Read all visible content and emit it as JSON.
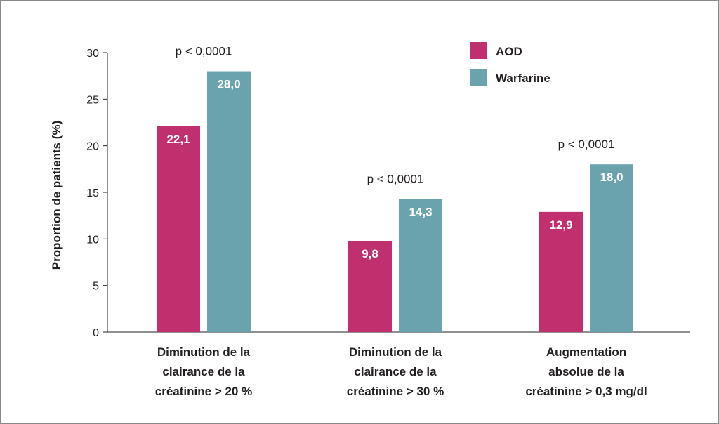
{
  "chart_data": {
    "type": "bar",
    "title": "",
    "ylabel": "Proportion de patients (%)",
    "xlabel": "",
    "ylim": [
      0,
      30
    ],
    "yticks": [
      0,
      5,
      10,
      15,
      20,
      25,
      30
    ],
    "legend_position": "top-right",
    "grid": false,
    "categories": [
      [
        "Diminution de la",
        "clairance de la",
        "créatinine > 20 %"
      ],
      [
        "Diminution de la",
        "clairance de la",
        "créatinine > 30 %"
      ],
      [
        "Augmentation",
        "absolue de la",
        "créatinine > 0,3 mg/dl"
      ]
    ],
    "series": [
      {
        "name": "AOD",
        "color": "#c0306e",
        "values": [
          22.1,
          9.8,
          12.9
        ],
        "labels": [
          "22,1",
          "9,8",
          "12,9"
        ]
      },
      {
        "name": "Warfarine",
        "color": "#6aa3ae",
        "values": [
          28.0,
          14.3,
          18.0
        ],
        "labels": [
          "28,0",
          "14,3",
          "18,0"
        ]
      }
    ],
    "annotations": [
      "p < 0,0001",
      "p < 0,0001",
      "p < 0,0001"
    ]
  }
}
